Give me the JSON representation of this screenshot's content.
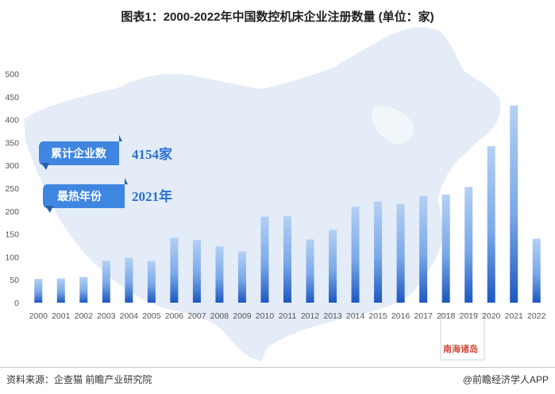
{
  "title": "图表1：2000-2022年中国数控机床企业注册数量 (单位：家)",
  "chart_data": {
    "type": "bar",
    "categories": [
      "2000",
      "2001",
      "2002",
      "2003",
      "2004",
      "2005",
      "2006",
      "2007",
      "2008",
      "2009",
      "2010",
      "2011",
      "2012",
      "2013",
      "2014",
      "2015",
      "2016",
      "2017",
      "2018",
      "2019",
      "2020",
      "2021",
      "2022"
    ],
    "values": [
      52,
      53,
      56,
      92,
      98,
      91,
      142,
      137,
      123,
      112,
      188,
      189,
      138,
      159,
      210,
      221,
      216,
      233,
      236,
      253,
      342,
      431,
      140
    ],
    "ylim": [
      0,
      500
    ],
    "yticks": [
      0,
      50,
      100,
      150,
      200,
      250,
      300,
      350,
      400,
      450,
      500
    ],
    "grid": false,
    "bar_color_top": "#a9c8f2",
    "bar_color_bottom": "#1f5ac4"
  },
  "annotations": {
    "cumulative_label": "累计企业数",
    "cumulative_value": "4154家",
    "hottest_label": "最热年份",
    "hottest_value": "2021年"
  },
  "map_inset_label": "南海诸岛",
  "footer": {
    "source": "资料来源：企查猫 前瞻产业研究院",
    "credit": "@前瞻经济学人APP"
  },
  "colors": {
    "map_fill": "#dfe9f6",
    "banner_fill": "#3f86e0",
    "accent_text": "#2a6fd0"
  }
}
